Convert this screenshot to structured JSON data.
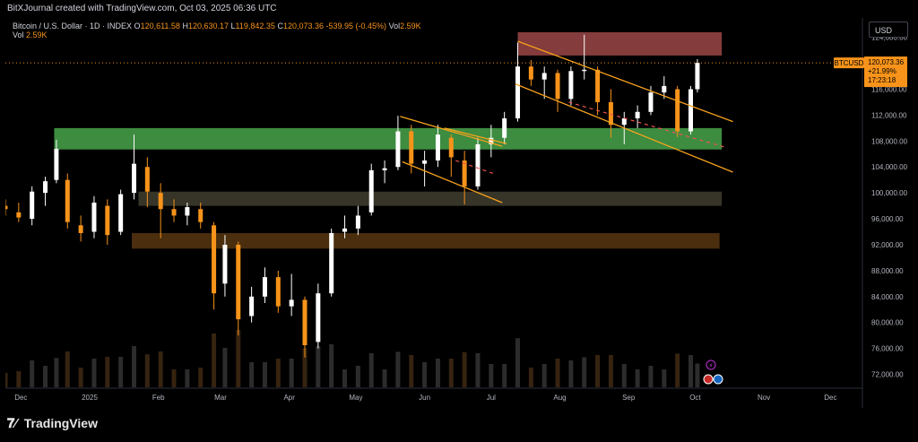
{
  "header": {
    "credit": "BitXJournal created with TradingView.com, Oct 03, 2025 06:36 UTC"
  },
  "legend": {
    "symbol_line": "Bitcoin / U.S. Dollar · 1D · INDEX",
    "open_label": "O",
    "open": "120,611.58",
    "high_label": "H",
    "high": "120,630.17",
    "low_label": "L",
    "low": "119,842.35",
    "close_label": "C",
    "close": "120,073.36",
    "change": "-539.95 (-0.45%)",
    "vol_label": "Vol",
    "vol": "2.59K"
  },
  "price_scale": {
    "currency": "USD",
    "ticks": [
      "124,000.00",
      "120,000.00",
      "116,000.00",
      "112,000.00",
      "108,000.00",
      "104,000.00",
      "100,000.00",
      "96,000.00",
      "92,000.00",
      "88,000.00",
      "84,000.00",
      "80,000.00",
      "76,000.00",
      "72,000.00"
    ]
  },
  "price_tag": {
    "symbol": "BTCUSD",
    "price": "120,073.36",
    "change": "+21.99%",
    "countdown": "17:23:18"
  },
  "time_axis": {
    "labels": [
      "Dec",
      "2025",
      "Feb",
      "Mar",
      "Apr",
      "May",
      "Jun",
      "Jul",
      "Aug",
      "Sep",
      "Oct",
      "Nov",
      "Dec"
    ]
  },
  "brand": {
    "name": "TradingView"
  },
  "colors": {
    "up": "#ffffff",
    "down": "#f7931a",
    "trendline": "#f7a21b",
    "zone_green": "#4caf50",
    "zone_red": "#b05050",
    "zone_tan": "#4a4636",
    "zone_brown": "#5c3a12",
    "price_tag_bg": "#f7931a"
  },
  "chart_data": {
    "type": "candlestick",
    "symbol": "BTCUSD",
    "timeframe": "1D",
    "ylim": [
      70000,
      127000
    ],
    "x_range": [
      "2024-11-24",
      "2025-12-15"
    ],
    "grid": false,
    "zones": [
      {
        "label": "resistance",
        "from": 121200,
        "to": 124800,
        "start": "2025-07-13",
        "end": "2025-10-13"
      },
      {
        "label": "support",
        "from": 106700,
        "to": 110000,
        "start": "2024-12-16",
        "end": "2025-10-13"
      },
      {
        "label": "support",
        "from": 98000,
        "to": 100200,
        "start": "2025-01-23",
        "end": "2025-10-13"
      },
      {
        "label": "support",
        "from": 91400,
        "to": 93800,
        "start": "2025-01-20",
        "end": "2025-10-12"
      }
    ],
    "trendlines": [
      {
        "from": [
          "2025-05-21",
          111800
        ],
        "to": [
          "2025-07-06",
          107200
        ]
      },
      {
        "from": [
          "2025-05-22",
          104800
        ],
        "to": [
          "2025-07-06",
          98500
        ]
      },
      {
        "from": [
          "2025-07-13",
          123400
        ],
        "to": [
          "2025-10-18",
          111000
        ]
      },
      {
        "from": [
          "2025-07-12",
          116800
        ],
        "to": [
          "2025-10-18",
          103200
        ]
      },
      {
        "from": [
          "2025-06-10",
          110000
        ],
        "to": [
          "2025-07-08",
          107600
        ]
      }
    ],
    "dashed_lines": [
      {
        "from": [
          "2025-06-15",
          105000
        ],
        "to": [
          "2025-07-02",
          103000
        ]
      },
      {
        "from": [
          "2025-08-05",
          114000
        ],
        "to": [
          "2025-10-15",
          107000
        ]
      }
    ],
    "candles": [
      {
        "x": "2024-11-24",
        "o": 98000,
        "h": 99000,
        "l": 96500,
        "c": 97500
      },
      {
        "x": "2024-11-30",
        "o": 97000,
        "h": 98500,
        "l": 95500,
        "c": 96200
      },
      {
        "x": "2024-12-06",
        "o": 96000,
        "h": 101000,
        "l": 95000,
        "c": 100200
      },
      {
        "x": "2024-12-12",
        "o": 100000,
        "h": 102500,
        "l": 98000,
        "c": 101800
      },
      {
        "x": "2024-12-17",
        "o": 102000,
        "h": 108200,
        "l": 101500,
        "c": 106800
      },
      {
        "x": "2024-12-22",
        "o": 102000,
        "h": 103000,
        "l": 94500,
        "c": 95500
      },
      {
        "x": "2024-12-28",
        "o": 95000,
        "h": 96500,
        "l": 92500,
        "c": 93800
      },
      {
        "x": "2025-01-03",
        "o": 94000,
        "h": 99500,
        "l": 93000,
        "c": 98500
      },
      {
        "x": "2025-01-09",
        "o": 98000,
        "h": 99000,
        "l": 92000,
        "c": 93500
      },
      {
        "x": "2025-01-15",
        "o": 94000,
        "h": 100500,
        "l": 93500,
        "c": 99800
      },
      {
        "x": "2025-01-21",
        "o": 100000,
        "h": 109000,
        "l": 99000,
        "c": 104500
      },
      {
        "x": "2025-01-27",
        "o": 104000,
        "h": 105500,
        "l": 97800,
        "c": 100200
      },
      {
        "x": "2025-02-02",
        "o": 100000,
        "h": 101500,
        "l": 93000,
        "c": 97500
      },
      {
        "x": "2025-02-08",
        "o": 97500,
        "h": 99000,
        "l": 95500,
        "c": 96500
      },
      {
        "x": "2025-02-14",
        "o": 96500,
        "h": 98500,
        "l": 95000,
        "c": 97800
      },
      {
        "x": "2025-02-20",
        "o": 97500,
        "h": 98500,
        "l": 94500,
        "c": 95500
      },
      {
        "x": "2025-02-26",
        "o": 95000,
        "h": 95500,
        "l": 82000,
        "c": 84500
      },
      {
        "x": "2025-03-03",
        "o": 86000,
        "h": 93500,
        "l": 84000,
        "c": 92000
      },
      {
        "x": "2025-03-09",
        "o": 92000,
        "h": 92500,
        "l": 78000,
        "c": 80500
      },
      {
        "x": "2025-03-15",
        "o": 81000,
        "h": 85500,
        "l": 80000,
        "c": 84000
      },
      {
        "x": "2025-03-21",
        "o": 84000,
        "h": 88500,
        "l": 83000,
        "c": 87000
      },
      {
        "x": "2025-03-27",
        "o": 87000,
        "h": 88000,
        "l": 81500,
        "c": 82500
      },
      {
        "x": "2025-04-02",
        "o": 82500,
        "h": 87500,
        "l": 81000,
        "c": 83500
      },
      {
        "x": "2025-04-08",
        "o": 83500,
        "h": 84000,
        "l": 74600,
        "c": 76500
      },
      {
        "x": "2025-04-14",
        "o": 77000,
        "h": 86000,
        "l": 76000,
        "c": 84500
      },
      {
        "x": "2025-04-20",
        "o": 84500,
        "h": 94500,
        "l": 84000,
        "c": 93800
      },
      {
        "x": "2025-04-26",
        "o": 94000,
        "h": 96500,
        "l": 93000,
        "c": 94500
      },
      {
        "x": "2025-05-02",
        "o": 94500,
        "h": 98000,
        "l": 93500,
        "c": 96500
      },
      {
        "x": "2025-05-08",
        "o": 97000,
        "h": 104500,
        "l": 96500,
        "c": 103500
      },
      {
        "x": "2025-05-14",
        "o": 103500,
        "h": 105000,
        "l": 101500,
        "c": 103800
      },
      {
        "x": "2025-05-20",
        "o": 104000,
        "h": 111900,
        "l": 103500,
        "c": 109500
      },
      {
        "x": "2025-05-26",
        "o": 109500,
        "h": 110500,
        "l": 103000,
        "c": 104500
      },
      {
        "x": "2025-06-01",
        "o": 104500,
        "h": 106500,
        "l": 101000,
        "c": 105000
      },
      {
        "x": "2025-06-07",
        "o": 105000,
        "h": 110500,
        "l": 104000,
        "c": 109000
      },
      {
        "x": "2025-06-13",
        "o": 108500,
        "h": 109000,
        "l": 102500,
        "c": 105500
      },
      {
        "x": "2025-06-19",
        "o": 105000,
        "h": 106500,
        "l": 98200,
        "c": 101000
      },
      {
        "x": "2025-06-25",
        "o": 101000,
        "h": 108500,
        "l": 100500,
        "c": 107500
      },
      {
        "x": "2025-07-01",
        "o": 107500,
        "h": 110500,
        "l": 105500,
        "c": 108500
      },
      {
        "x": "2025-07-07",
        "o": 108500,
        "h": 112500,
        "l": 107500,
        "c": 111500
      },
      {
        "x": "2025-07-13",
        "o": 111500,
        "h": 123200,
        "l": 111000,
        "c": 119500
      },
      {
        "x": "2025-07-19",
        "o": 119500,
        "h": 120500,
        "l": 116500,
        "c": 117500
      },
      {
        "x": "2025-07-25",
        "o": 117500,
        "h": 119500,
        "l": 114500,
        "c": 118500
      },
      {
        "x": "2025-07-31",
        "o": 118500,
        "h": 119000,
        "l": 112500,
        "c": 114500
      },
      {
        "x": "2025-08-06",
        "o": 114500,
        "h": 119500,
        "l": 113500,
        "c": 118800
      },
      {
        "x": "2025-08-12",
        "o": 118800,
        "h": 124400,
        "l": 117500,
        "c": 119000
      },
      {
        "x": "2025-08-18",
        "o": 119000,
        "h": 119500,
        "l": 112000,
        "c": 114000
      },
      {
        "x": "2025-08-24",
        "o": 114000,
        "h": 116000,
        "l": 108500,
        "c": 110500
      },
      {
        "x": "2025-08-30",
        "o": 110500,
        "h": 112500,
        "l": 107500,
        "c": 111500
      },
      {
        "x": "2025-09-05",
        "o": 111500,
        "h": 113500,
        "l": 110000,
        "c": 112500
      },
      {
        "x": "2025-09-11",
        "o": 112500,
        "h": 116500,
        "l": 112000,
        "c": 115500
      },
      {
        "x": "2025-09-17",
        "o": 115500,
        "h": 118000,
        "l": 114500,
        "c": 116500
      },
      {
        "x": "2025-09-23",
        "o": 116000,
        "h": 116500,
        "l": 108600,
        "c": 109500
      },
      {
        "x": "2025-09-29",
        "o": 109500,
        "h": 116500,
        "l": 109000,
        "c": 116000
      },
      {
        "x": "2025-10-02",
        "o": 116000,
        "h": 120630,
        "l": 115500,
        "c": 120073
      }
    ]
  }
}
